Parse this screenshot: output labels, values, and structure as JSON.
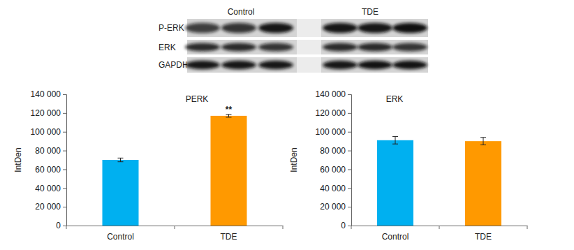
{
  "blot": {
    "groups": [
      "Control",
      "TDE"
    ],
    "rows": [
      "P-ERK",
      "ERK",
      "GAPDH"
    ]
  },
  "chart_data": [
    {
      "type": "bar",
      "title": "PERK",
      "ylabel": "IntDen",
      "categories": [
        "Control",
        "TDE"
      ],
      "values": [
        70000,
        117000
      ],
      "errors": [
        2000,
        1500
      ],
      "colors": [
        "#00b0f0",
        "#ff9900"
      ],
      "ylim": [
        0,
        140000
      ],
      "yticks": [
        0,
        {
          "value": 20000,
          "label": "20 000"
        },
        {
          "value": 40000,
          "label": "40 000"
        },
        {
          "value": 60000,
          "label": "60 000"
        },
        {
          "value": 80000,
          "label": "80 000"
        },
        {
          "value": 100000,
          "label": "100 000"
        },
        {
          "value": 120000,
          "label": "120 000"
        },
        {
          "value": 140000,
          "label": "140 000"
        }
      ],
      "annotations": [
        {
          "text": "**",
          "category": "TDE"
        }
      ]
    },
    {
      "type": "bar",
      "title": "ERK",
      "ylabel": "IntDen",
      "categories": [
        "Control",
        "TDE"
      ],
      "values": [
        91000,
        90000
      ],
      "errors": [
        4000,
        4000
      ],
      "colors": [
        "#00b0f0",
        "#ff9900"
      ],
      "ylim": [
        0,
        140000
      ],
      "yticks": [
        0,
        {
          "value": 20000,
          "label": "20 000"
        },
        {
          "value": 40000,
          "label": "40 000"
        },
        {
          "value": 60000,
          "label": "60 000"
        },
        {
          "value": 80000,
          "label": "80 000"
        },
        {
          "value": 100000,
          "label": "100 000"
        },
        {
          "value": 120000,
          "label": "120 000"
        },
        {
          "value": 140000,
          "label": "140 000"
        }
      ]
    }
  ]
}
